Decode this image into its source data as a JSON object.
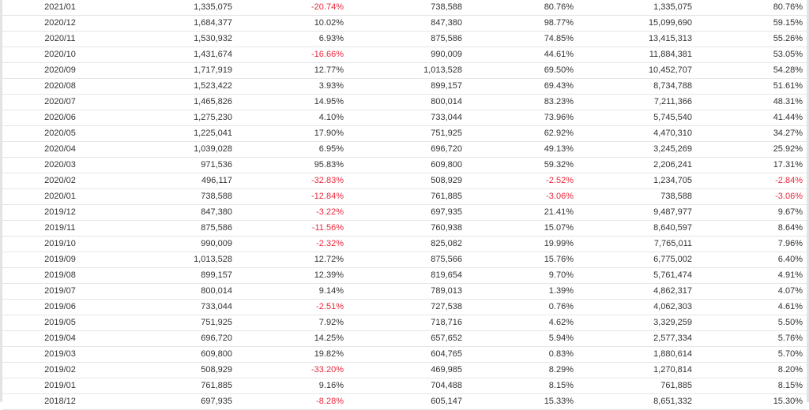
{
  "table": {
    "rows": [
      {
        "date": "2021/01",
        "v1": "1,335,075",
        "p1": "-20.74%",
        "v2": "738,588",
        "p2": "80.76%",
        "v3": "1,335,075",
        "p3": "80.76%"
      },
      {
        "date": "2020/12",
        "v1": "1,684,377",
        "p1": "10.02%",
        "v2": "847,380",
        "p2": "98.77%",
        "v3": "15,099,690",
        "p3": "59.15%"
      },
      {
        "date": "2020/11",
        "v1": "1,530,932",
        "p1": "6.93%",
        "v2": "875,586",
        "p2": "74.85%",
        "v3": "13,415,313",
        "p3": "55.26%"
      },
      {
        "date": "2020/10",
        "v1": "1,431,674",
        "p1": "-16.66%",
        "v2": "990,009",
        "p2": "44.61%",
        "v3": "11,884,381",
        "p3": "53.05%"
      },
      {
        "date": "2020/09",
        "v1": "1,717,919",
        "p1": "12.77%",
        "v2": "1,013,528",
        "p2": "69.50%",
        "v3": "10,452,707",
        "p3": "54.28%"
      },
      {
        "date": "2020/08",
        "v1": "1,523,422",
        "p1": "3.93%",
        "v2": "899,157",
        "p2": "69.43%",
        "v3": "8,734,788",
        "p3": "51.61%"
      },
      {
        "date": "2020/07",
        "v1": "1,465,826",
        "p1": "14.95%",
        "v2": "800,014",
        "p2": "83.23%",
        "v3": "7,211,366",
        "p3": "48.31%"
      },
      {
        "date": "2020/06",
        "v1": "1,275,230",
        "p1": "4.10%",
        "v2": "733,044",
        "p2": "73.96%",
        "v3": "5,745,540",
        "p3": "41.44%"
      },
      {
        "date": "2020/05",
        "v1": "1,225,041",
        "p1": "17.90%",
        "v2": "751,925",
        "p2": "62.92%",
        "v3": "4,470,310",
        "p3": "34.27%"
      },
      {
        "date": "2020/04",
        "v1": "1,039,028",
        "p1": "6.95%",
        "v2": "696,720",
        "p2": "49.13%",
        "v3": "3,245,269",
        "p3": "25.92%"
      },
      {
        "date": "2020/03",
        "v1": "971,536",
        "p1": "95.83%",
        "v2": "609,800",
        "p2": "59.32%",
        "v3": "2,206,241",
        "p3": "17.31%"
      },
      {
        "date": "2020/02",
        "v1": "496,117",
        "p1": "-32.83%",
        "v2": "508,929",
        "p2": "-2.52%",
        "v3": "1,234,705",
        "p3": "-2.84%"
      },
      {
        "date": "2020/01",
        "v1": "738,588",
        "p1": "-12.84%",
        "v2": "761,885",
        "p2": "-3.06%",
        "v3": "738,588",
        "p3": "-3.06%"
      },
      {
        "date": "2019/12",
        "v1": "847,380",
        "p1": "-3.22%",
        "v2": "697,935",
        "p2": "21.41%",
        "v3": "9,487,977",
        "p3": "9.67%"
      },
      {
        "date": "2019/11",
        "v1": "875,586",
        "p1": "-11.56%",
        "v2": "760,938",
        "p2": "15.07%",
        "v3": "8,640,597",
        "p3": "8.64%"
      },
      {
        "date": "2019/10",
        "v1": "990,009",
        "p1": "-2.32%",
        "v2": "825,082",
        "p2": "19.99%",
        "v3": "7,765,011",
        "p3": "7.96%"
      },
      {
        "date": "2019/09",
        "v1": "1,013,528",
        "p1": "12.72%",
        "v2": "875,566",
        "p2": "15.76%",
        "v3": "6,775,002",
        "p3": "6.40%"
      },
      {
        "date": "2019/08",
        "v1": "899,157",
        "p1": "12.39%",
        "v2": "819,654",
        "p2": "9.70%",
        "v3": "5,761,474",
        "p3": "4.91%"
      },
      {
        "date": "2019/07",
        "v1": "800,014",
        "p1": "9.14%",
        "v2": "789,013",
        "p2": "1.39%",
        "v3": "4,862,317",
        "p3": "4.07%"
      },
      {
        "date": "2019/06",
        "v1": "733,044",
        "p1": "-2.51%",
        "v2": "727,538",
        "p2": "0.76%",
        "v3": "4,062,303",
        "p3": "4.61%"
      },
      {
        "date": "2019/05",
        "v1": "751,925",
        "p1": "7.92%",
        "v2": "718,716",
        "p2": "4.62%",
        "v3": "3,329,259",
        "p3": "5.50%"
      },
      {
        "date": "2019/04",
        "v1": "696,720",
        "p1": "14.25%",
        "v2": "657,652",
        "p2": "5.94%",
        "v3": "2,577,334",
        "p3": "5.76%"
      },
      {
        "date": "2019/03",
        "v1": "609,800",
        "p1": "19.82%",
        "v2": "604,765",
        "p2": "0.83%",
        "v3": "1,880,614",
        "p3": "5.70%"
      },
      {
        "date": "2019/02",
        "v1": "508,929",
        "p1": "-33.20%",
        "v2": "469,985",
        "p2": "8.29%",
        "v3": "1,270,814",
        "p3": "8.20%"
      },
      {
        "date": "2019/01",
        "v1": "761,885",
        "p1": "9.16%",
        "v2": "704,488",
        "p2": "8.15%",
        "v3": "761,885",
        "p3": "8.15%"
      },
      {
        "date": "2018/12",
        "v1": "697,935",
        "p1": "-8.28%",
        "v2": "605,147",
        "p2": "15.33%",
        "v3": "8,651,332",
        "p3": "15.30%"
      }
    ]
  },
  "colors": {
    "negative": "#e8293c",
    "text": "#333333",
    "row_border": "#e6e6e6"
  }
}
